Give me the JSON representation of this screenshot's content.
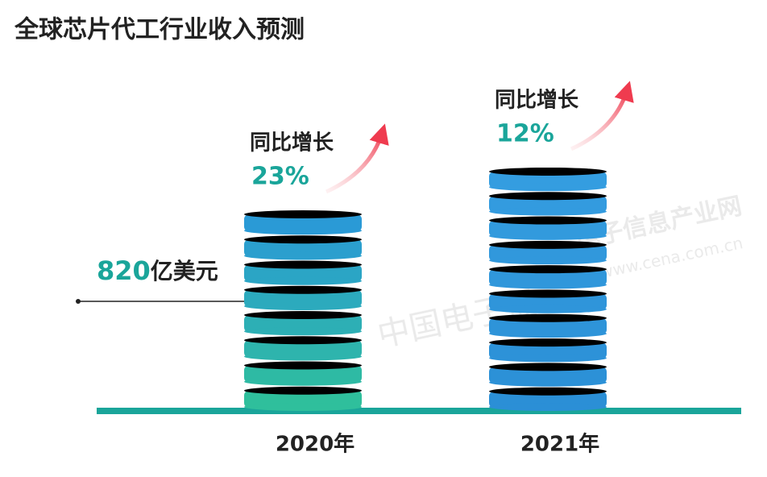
{
  "chart_data": {
    "type": "bar",
    "title": "全球芯片代工行业收入预测",
    "categories": [
      "2020年",
      "2021年"
    ],
    "values": [
      820,
      994
    ],
    "value_labels": [
      "820亿美元",
      null
    ],
    "colors": [
      "#2fbf9c",
      "#2b8fd6"
    ],
    "growth_title": "同比增长",
    "growth": [
      23,
      12
    ],
    "growth_labels": [
      "23%",
      "12%"
    ],
    "watermarks": [
      "中国电子报",
      "电子信息产业网",
      "www.cena.com.cn"
    ]
  }
}
